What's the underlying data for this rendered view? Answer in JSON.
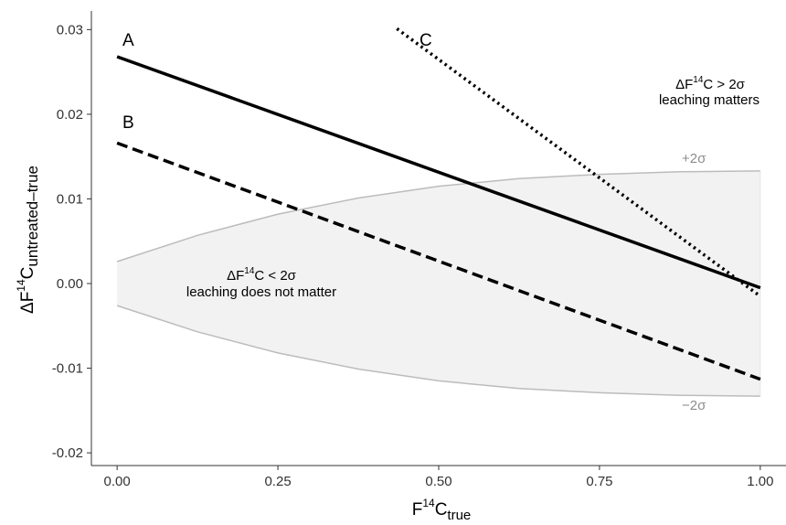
{
  "chart_data": {
    "type": "line",
    "xlabel": {
      "main": "F",
      "sup": "14",
      "after": "C",
      "sub": "true"
    },
    "ylabel": {
      "main": "ΔF",
      "sup": "14",
      "after": "C",
      "sub": "untreated–true"
    },
    "xlim": [
      -0.04,
      1.04
    ],
    "ylim": [
      -0.0215,
      0.0322
    ],
    "xticks": [
      0.0,
      0.25,
      0.5,
      0.75,
      1.0
    ],
    "xtick_labels": [
      "0.00",
      "0.25",
      "0.50",
      "0.75",
      "1.00"
    ],
    "yticks": [
      -0.02,
      -0.01,
      0.0,
      0.01,
      0.02,
      0.03
    ],
    "ytick_labels": [
      "-0.02",
      "-0.01",
      "0.00",
      "0.01",
      "0.02",
      "0.03"
    ],
    "grid": false,
    "series": [
      {
        "name": "A",
        "style": "solid",
        "color": "#000000",
        "x": [
          0.0,
          1.0
        ],
        "y": [
          0.0268,
          -0.0005
        ]
      },
      {
        "name": "B",
        "style": "dashed",
        "color": "#000000",
        "x": [
          0.0,
          1.0
        ],
        "y": [
          0.0166,
          -0.0113
        ]
      },
      {
        "name": "C",
        "style": "dotted",
        "color": "#000000",
        "x": [
          0.435,
          1.0
        ],
        "y": [
          0.0301,
          -0.0015
        ]
      }
    ],
    "band": {
      "fill": "#f2f2f2",
      "stroke": "#bcbcbc",
      "x": [
        0.0,
        0.125,
        0.25,
        0.375,
        0.5,
        0.625,
        0.75,
        0.875,
        1.0
      ],
      "upper": [
        0.0026,
        0.0057,
        0.0082,
        0.0101,
        0.0115,
        0.0124,
        0.0129,
        0.0132,
        0.0133
      ],
      "lower": [
        -0.0026,
        -0.0057,
        -0.0082,
        -0.0101,
        -0.0115,
        -0.0124,
        -0.0129,
        -0.0132,
        -0.0133
      ],
      "upper_label": "+2σ",
      "lower_label": "−2σ"
    },
    "annotations": [
      {
        "id": "above",
        "pre": "ΔF",
        "sup": "14",
        "post": "C > 2σ",
        "line2": "leaching matters"
      },
      {
        "id": "below",
        "pre": "ΔF",
        "sup": "14",
        "post": "C < 2σ",
        "line2": "leaching does not matter"
      }
    ]
  }
}
